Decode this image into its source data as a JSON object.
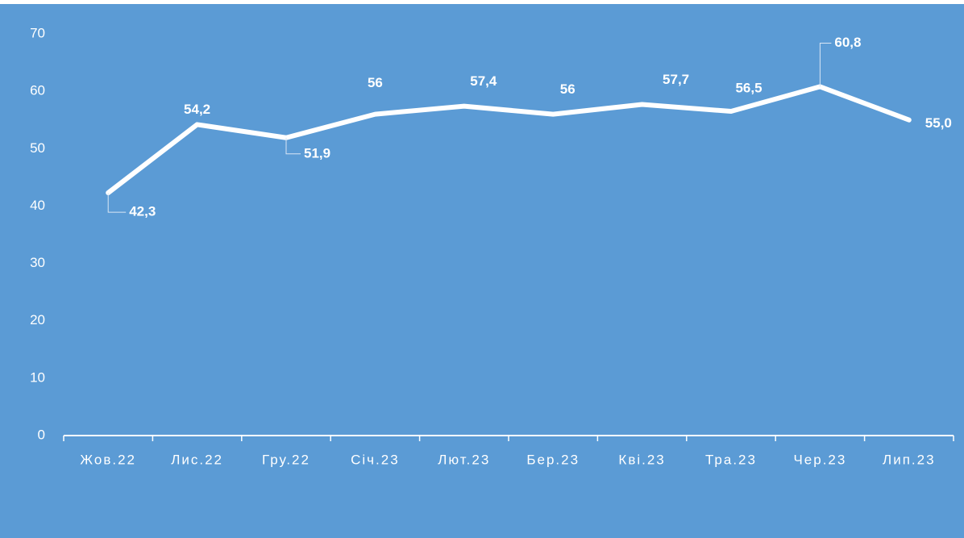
{
  "chart_data": {
    "type": "line",
    "categories": [
      "Жов.22",
      "Лис.22",
      "Гру.22",
      "Січ.23",
      "Лют.23",
      "Бер.23",
      "Кві.23",
      "Тра.23",
      "Чер.23",
      "Лип.23"
    ],
    "values": [
      42.3,
      54.2,
      51.9,
      56,
      57.4,
      56,
      57.7,
      56.5,
      60.8,
      55.0
    ],
    "value_labels": [
      "42,3",
      "54,2",
      "51,9",
      "56",
      "57,4",
      "56",
      "57,7",
      "56,5",
      "60,8",
      "55,0"
    ],
    "color": "#ffffff",
    "ylim": [
      0,
      70
    ],
    "yticks": [
      0,
      10,
      20,
      30,
      40,
      50,
      60,
      70
    ],
    "grid": false
  }
}
